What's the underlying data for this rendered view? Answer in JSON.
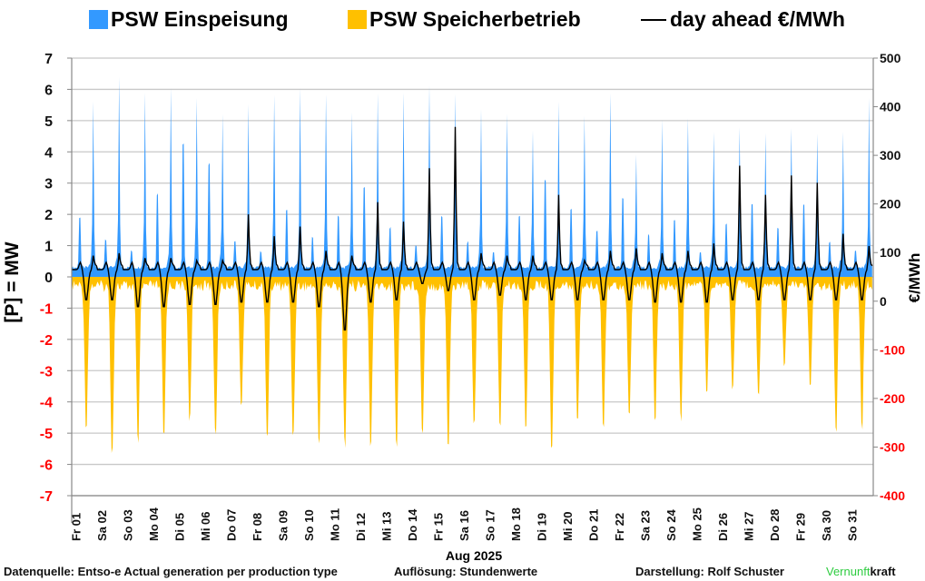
{
  "chart_data": {
    "type": "area",
    "title": "",
    "legend": {
      "placement": "top",
      "entries": [
        {
          "label": "PSW Einspeisung",
          "kind": "area",
          "color": "#3399ff"
        },
        {
          "label": "PSW Speicherbetrieb",
          "kind": "area",
          "color": "#ffc000"
        },
        {
          "label": "day ahead €/MWh",
          "kind": "line",
          "color": "#000000"
        }
      ]
    },
    "xlabel": "Aug 2025",
    "ylabel": "[P]  = MW",
    "y2label": "€/MWh",
    "ylim": [
      -7,
      7
    ],
    "y2lim": [
      -400,
      500
    ],
    "yticks": [
      "7",
      "6",
      "5",
      "4",
      "3",
      "2",
      "1",
      "0",
      "-1",
      "-2",
      "-3",
      "-4",
      "-5",
      "-6",
      "-7"
    ],
    "y2ticks": [
      "500",
      "400",
      "300",
      "200",
      "100",
      "0",
      "-100",
      "-200",
      "-300",
      "-400"
    ],
    "negative_tick_color": "#ff0000",
    "grid": true,
    "categories": [
      "Fr 01",
      "Sa 02",
      "So 03",
      "Mo 04",
      "Di 05",
      "Mi 06",
      "Do 07",
      "Fr 08",
      "Sa 09",
      "So 10",
      "Mo 11",
      "Di 12",
      "Mi 13",
      "Do 14",
      "Fr 15",
      "Sa 16",
      "So 17",
      "Mo 18",
      "Di 19",
      "Mi 20",
      "Do 21",
      "Fr 22",
      "Sa 23",
      "So 24",
      "Mo 25",
      "Di 26",
      "Mi 27",
      "Do 28",
      "Fr 29",
      "Sa 30",
      "So 31"
    ],
    "series": [
      {
        "name": "PSW Einspeisung",
        "unit": "MW",
        "daily_morning_peak": [
          2.5,
          1.5,
          1.0,
          3.5,
          5.7,
          4.8,
          1.5,
          1.0,
          2.8,
          1.6,
          2.5,
          3.8,
          2.0,
          1.2,
          2.5,
          1.4,
          1.0,
          2.5,
          4.1,
          2.8,
          1.9,
          3.3,
          1.7,
          2.3,
          1.0,
          2.2,
          3.0,
          2.0,
          3.0,
          1.4,
          1.0
        ],
        "daily_evening_peak": [
          5.2,
          6.0,
          5.6,
          5.7,
          5.4,
          4.9,
          5.3,
          5.5,
          5.6,
          5.6,
          4.9,
          5.6,
          5.5,
          5.7,
          5.4,
          4.9,
          4.9,
          4.2,
          5.2,
          4.8,
          5.5,
          3.5,
          4.6,
          4.8,
          4.2,
          4.6,
          4.3,
          4.4,
          4.3,
          4.3,
          5.3
        ],
        "daily_min_pumping": [
          -4.9,
          -5.8,
          -5.5,
          -5.3,
          -4.7,
          -5.3,
          -4.3,
          -5.3,
          -5.3,
          -5.5,
          -5.6,
          -5.6,
          -5.6,
          -5.2,
          -5.6,
          -4.9,
          -4.9,
          -5.1,
          -5.6,
          -4.7,
          -4.9,
          -4.7,
          -4.9,
          -4.7,
          -3.7,
          -3.7,
          -4.0,
          -2.9,
          -3.6,
          -5.1,
          -5.0
        ]
      },
      {
        "name": "day ahead €/MWh",
        "unit": "€/MWh",
        "daily_max": [
          100,
          105,
          95,
          95,
          90,
          90,
          185,
          140,
          160,
          110,
          100,
          210,
          170,
          280,
          365,
          105,
          100,
          100,
          225,
          90,
          110,
          115,
          105,
          110,
          125,
          285,
          225,
          265,
          250,
          145,
          120
        ],
        "daily_min": [
          0,
          0,
          -15,
          -15,
          -10,
          -10,
          -5,
          -5,
          -5,
          -15,
          -65,
          -5,
          0,
          35,
          20,
          0,
          10,
          0,
          0,
          0,
          0,
          0,
          -5,
          -5,
          -5,
          0,
          0,
          0,
          0,
          0,
          0
        ]
      }
    ]
  },
  "footer": {
    "source": "Datenquelle: Entso-e  Actual generation per production type",
    "resolution": "Auflösung: Stundenwerte",
    "author": "Darstellung:  Rolf Schuster",
    "brand_green": "Vernunft",
    "brand_black": "kraft"
  }
}
